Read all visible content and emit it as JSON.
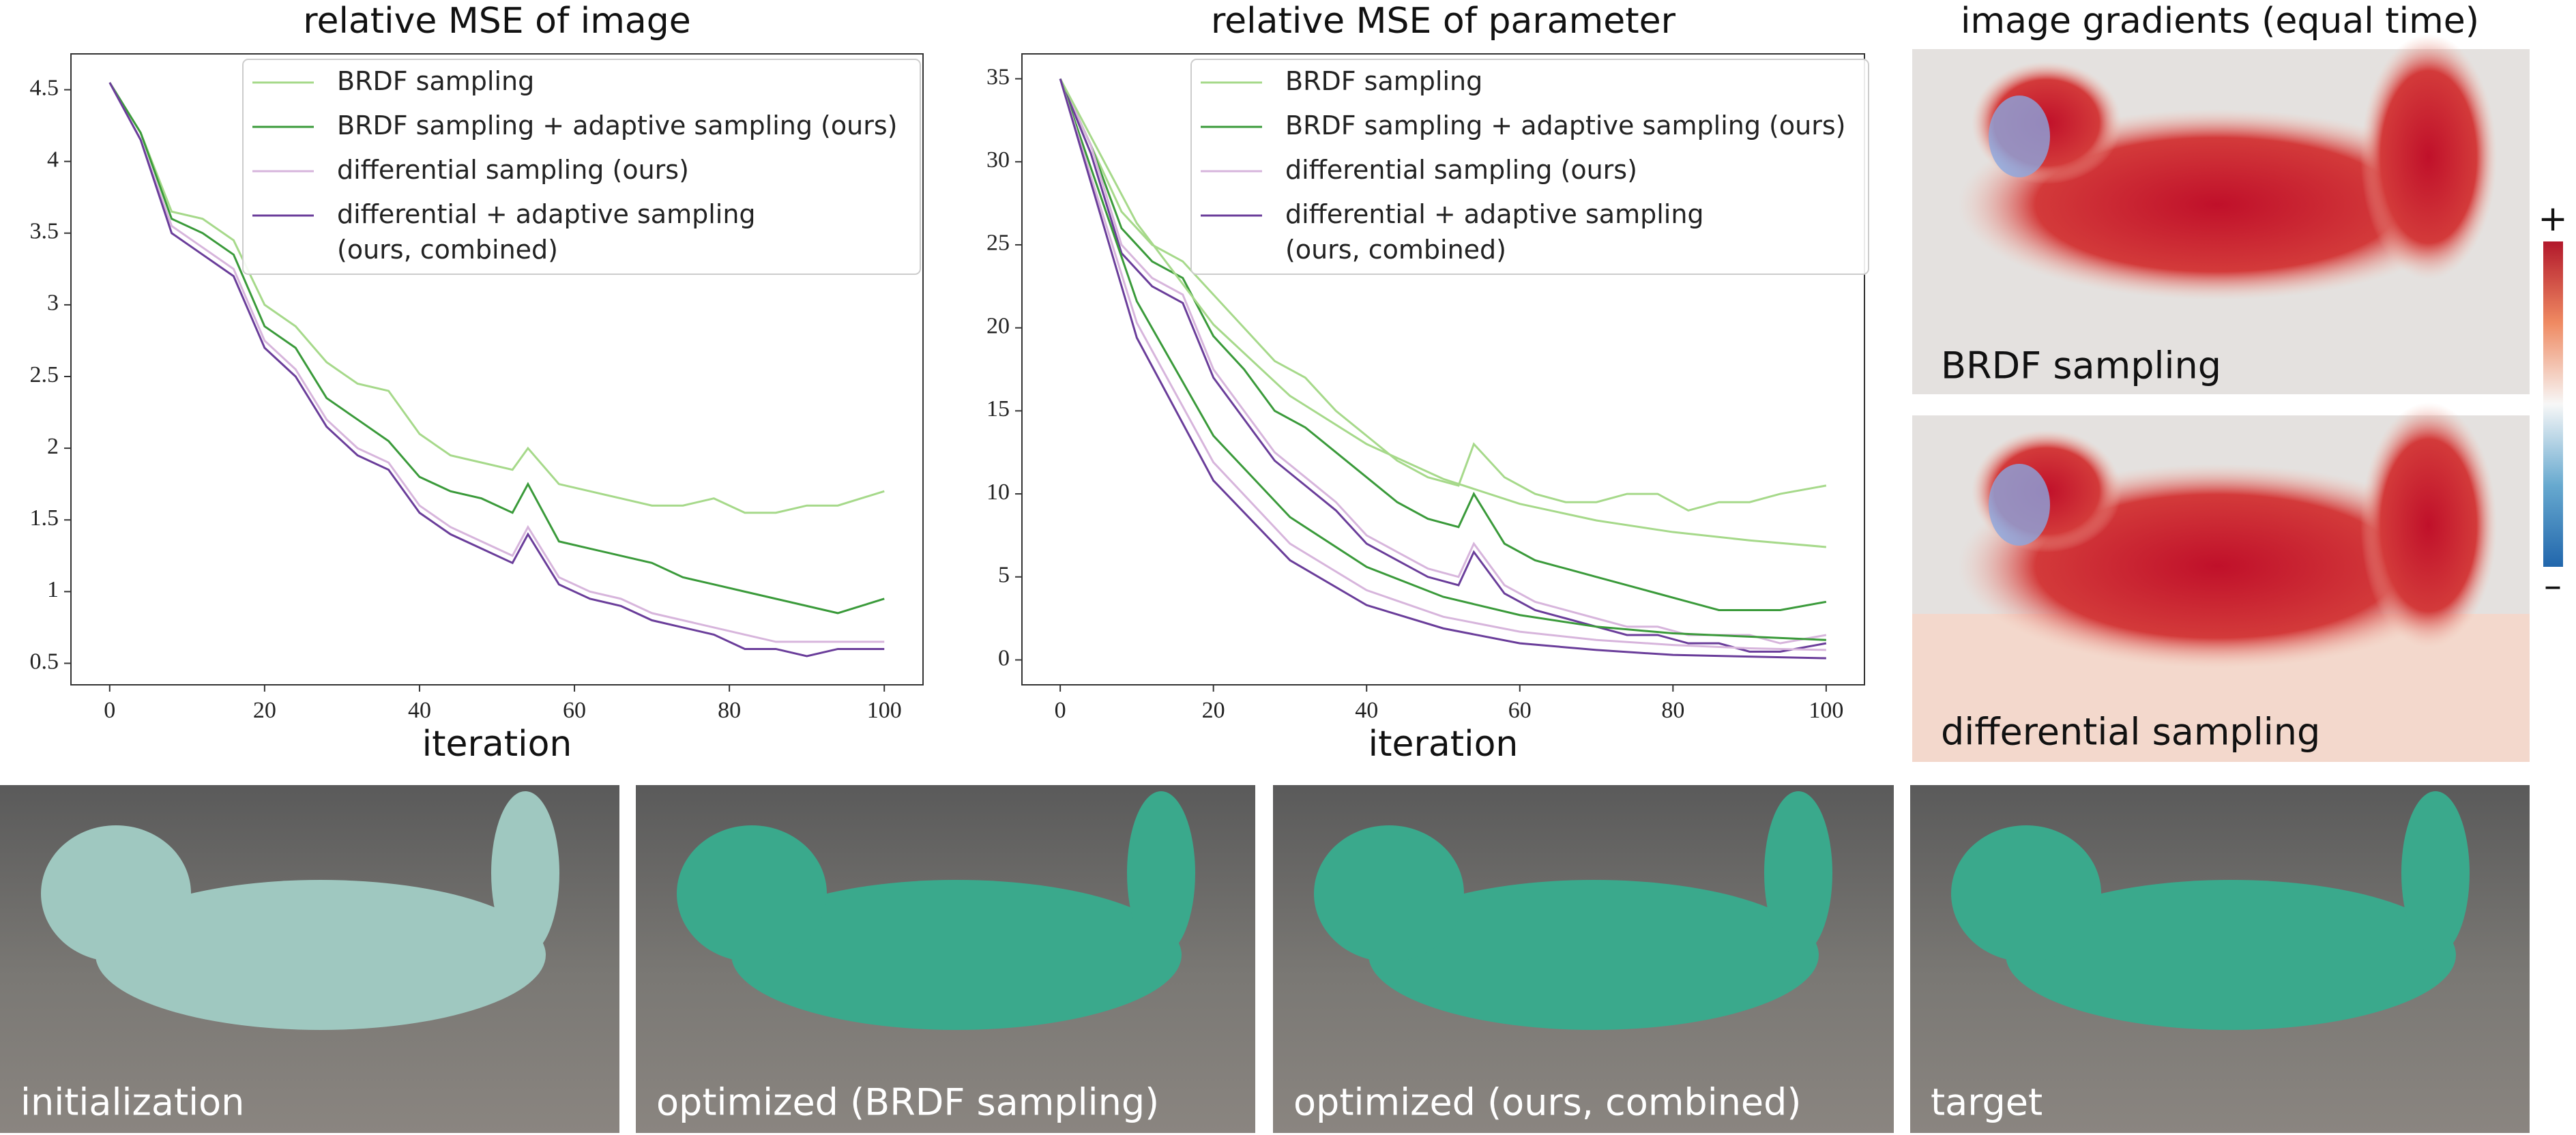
{
  "chart_data": [
    {
      "type": "line",
      "title": "relative MSE of image",
      "x_label": "iteration",
      "x": [
        0,
        4,
        8,
        12,
        16,
        20,
        24,
        28,
        32,
        36,
        40,
        44,
        48,
        52,
        54,
        58,
        62,
        66,
        70,
        74,
        78,
        82,
        86,
        90,
        94,
        100
      ],
      "xlim": [
        -5,
        105
      ],
      "xticks": [
        0,
        20,
        40,
        60,
        80,
        100
      ],
      "ylim": [
        0.35,
        4.75
      ],
      "yticks": [
        0.5,
        1.0,
        1.5,
        2.0,
        2.5,
        3.0,
        3.5,
        4.0,
        4.5
      ],
      "series": [
        {
          "name": "BRDF sampling",
          "color": "#a6d98a",
          "values": [
            4.55,
            4.2,
            3.65,
            3.6,
            3.45,
            3.0,
            2.85,
            2.6,
            2.45,
            2.4,
            2.1,
            1.95,
            1.9,
            1.85,
            2.0,
            1.75,
            1.7,
            1.65,
            1.6,
            1.6,
            1.65,
            1.55,
            1.55,
            1.6,
            1.6,
            1.7
          ]
        },
        {
          "name": "BRDF sampling + adaptive sampling (ours)",
          "color": "#3a9a3a",
          "values": [
            4.55,
            4.2,
            3.6,
            3.5,
            3.35,
            2.85,
            2.7,
            2.35,
            2.2,
            2.05,
            1.8,
            1.7,
            1.65,
            1.55,
            1.75,
            1.35,
            1.3,
            1.25,
            1.2,
            1.1,
            1.05,
            1.0,
            0.95,
            0.9,
            0.85,
            0.95
          ]
        },
        {
          "name": "differential sampling (ours)",
          "color": "#d7b5dc",
          "values": [
            4.55,
            4.15,
            3.55,
            3.4,
            3.25,
            2.75,
            2.55,
            2.2,
            2.0,
            1.9,
            1.6,
            1.45,
            1.35,
            1.25,
            1.45,
            1.1,
            1.0,
            0.95,
            0.85,
            0.8,
            0.75,
            0.7,
            0.65,
            0.65,
            0.65,
            0.65
          ]
        },
        {
          "name": "differential + adaptive sampling\n(ours, combined)",
          "color": "#6a3d9a",
          "values": [
            4.55,
            4.15,
            3.5,
            3.35,
            3.2,
            2.7,
            2.5,
            2.15,
            1.95,
            1.85,
            1.55,
            1.4,
            1.3,
            1.2,
            1.4,
            1.05,
            0.95,
            0.9,
            0.8,
            0.75,
            0.7,
            0.6,
            0.6,
            0.55,
            0.6,
            0.6
          ]
        }
      ]
    },
    {
      "type": "line",
      "title": "relative MSE of parameter",
      "x_label": "iteration",
      "x": [
        0,
        4,
        8,
        12,
        16,
        20,
        24,
        28,
        32,
        36,
        40,
        44,
        48,
        52,
        54,
        58,
        62,
        66,
        70,
        74,
        78,
        82,
        86,
        90,
        94,
        100
      ],
      "xlim": [
        -5,
        105
      ],
      "xticks": [
        0,
        20,
        40,
        60,
        80,
        100
      ],
      "ylim": [
        -1.5,
        36.5
      ],
      "yticks": [
        0,
        5,
        10,
        15,
        20,
        25,
        30,
        35
      ],
      "series": [
        {
          "name": "BRDF sampling",
          "color": "#a6d98a",
          "values": [
            35,
            31,
            27,
            25,
            24,
            22,
            20,
            18,
            17,
            15,
            13.5,
            12,
            11,
            10.5,
            13,
            11,
            10,
            9.5,
            9.5,
            10,
            10,
            9,
            9.5,
            9.5,
            10,
            10.5
          ]
        },
        {
          "name": "BRDF sampling + adaptive sampling (ours)",
          "color": "#3a9a3a",
          "values": [
            35,
            31,
            26,
            24,
            23,
            19.5,
            17.5,
            15,
            14,
            12.5,
            11,
            9.5,
            8.5,
            8,
            10,
            7,
            6,
            5.5,
            5,
            4.5,
            4,
            3.5,
            3,
            3,
            3,
            3.5
          ]
        },
        {
          "name": "differential sampling (ours)",
          "color": "#d7b5dc",
          "values": [
            35,
            31,
            25,
            23,
            22,
            17.5,
            15,
            12.5,
            11,
            9.5,
            7.5,
            6.5,
            5.5,
            5,
            7,
            4.5,
            3.5,
            3,
            2.5,
            2,
            2,
            1.5,
            1.5,
            1.5,
            1,
            1.5
          ]
        },
        {
          "name": "differential + adaptive sampling\n(ours, combined)",
          "color": "#6a3d9a",
          "values": [
            35,
            30.5,
            24.5,
            22.5,
            21.5,
            17,
            14.5,
            12,
            10.5,
            9,
            7,
            6,
            5,
            4.5,
            6.5,
            4,
            3,
            2.5,
            2,
            1.5,
            1.5,
            1,
            1,
            0.5,
            0.5,
            1
          ]
        },
        {
          "color": "#a6d98a",
          "x": [
            0,
            10,
            20,
            30,
            40,
            50,
            60,
            70,
            80,
            90,
            100
          ],
          "values": [
            35,
            26.3,
            20.2,
            15.9,
            13.0,
            10.9,
            9.4,
            8.4,
            7.7,
            7.2,
            6.8
          ]
        },
        {
          "color": "#3a9a3a",
          "x": [
            0,
            10,
            20,
            30,
            40,
            50,
            60,
            70,
            80,
            90,
            100
          ],
          "values": [
            35,
            21.6,
            13.5,
            8.6,
            5.6,
            3.8,
            2.7,
            2.0,
            1.6,
            1.4,
            1.2
          ]
        },
        {
          "color": "#d7b5dc",
          "x": [
            0,
            10,
            20,
            30,
            40,
            50,
            60,
            70,
            80,
            90,
            100
          ],
          "values": [
            35,
            20.3,
            11.9,
            7.0,
            4.2,
            2.6,
            1.7,
            1.2,
            0.9,
            0.7,
            0.6
          ]
        },
        {
          "color": "#6a3d9a",
          "x": [
            0,
            10,
            20,
            30,
            40,
            50,
            60,
            70,
            80,
            90,
            100
          ],
          "values": [
            35,
            19.4,
            10.8,
            6.0,
            3.3,
            1.9,
            1.0,
            0.6,
            0.3,
            0.2,
            0.1
          ]
        }
      ]
    }
  ],
  "gradients": {
    "title": "image gradients (equal time)",
    "top_label": "BRDF sampling",
    "bottom_label": "differential sampling",
    "plus": "+",
    "minus": "–"
  },
  "renders": [
    "initialization",
    "optimized (BRDF sampling)",
    "optimized (ours, combined)",
    "target"
  ]
}
